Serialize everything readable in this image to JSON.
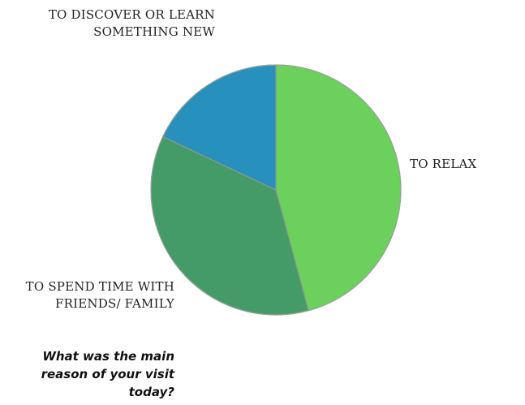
{
  "chart_data": {
    "type": "pie",
    "title": "What was the main reason of your visit today?",
    "slices": [
      {
        "label": "TO RELAX",
        "value": 45.8,
        "color": "#6bd15c"
      },
      {
        "label": "TO SPEND TIME WITH FRIENDS/ FAMILY",
        "value": 36.2,
        "color": "#459b67"
      },
      {
        "label": "TO DISCOVER OR LEARN SOMETHING NEW",
        "value": 18.0,
        "color": "#2890bd"
      }
    ]
  }
}
